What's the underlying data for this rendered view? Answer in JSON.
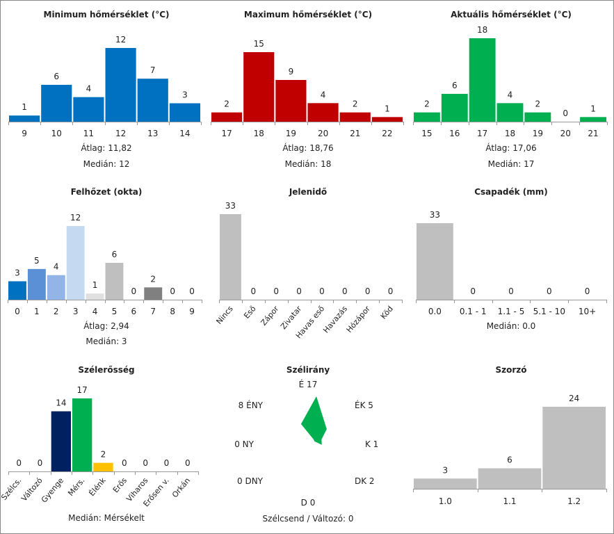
{
  "chart_data": [
    {
      "id": "min",
      "type": "bar",
      "title": "Minimum hőmérséklet (°C)",
      "categories": [
        "9",
        "10",
        "11",
        "12",
        "13",
        "14"
      ],
      "values": [
        1,
        6,
        4,
        12,
        7,
        3
      ],
      "colors": [
        "#0070c0"
      ],
      "stats": [
        [
          "Átlag:",
          "11,82"
        ],
        [
          "Medián:",
          "12"
        ]
      ]
    },
    {
      "id": "max",
      "type": "bar",
      "title": "Maximum hőmérséklet (°C)",
      "categories": [
        "17",
        "18",
        "19",
        "20",
        "21",
        "22"
      ],
      "values": [
        2,
        15,
        9,
        4,
        2,
        1
      ],
      "colors": [
        "#c00000"
      ],
      "stats": [
        [
          "Átlag:",
          "18,76"
        ],
        [
          "Medián:",
          "18"
        ]
      ]
    },
    {
      "id": "akt",
      "type": "bar",
      "title": "Aktuális hőmérséklet (°C)",
      "categories": [
        "15",
        "16",
        "17",
        "18",
        "19",
        "20",
        "21"
      ],
      "values": [
        2,
        6,
        18,
        4,
        2,
        0,
        1
      ],
      "colors": [
        "#00b050"
      ],
      "stats": [
        [
          "Átlag:",
          "17,06"
        ],
        [
          "Medián:",
          "17"
        ]
      ]
    },
    {
      "id": "felho",
      "type": "bar",
      "title": "Felhőzet (okta)",
      "categories": [
        "0",
        "1",
        "2",
        "3",
        "4",
        "5",
        "6",
        "7",
        "8",
        "9"
      ],
      "values": [
        3,
        5,
        4,
        12,
        1,
        6,
        0,
        2,
        0,
        0
      ],
      "colors": [
        "#0070c0",
        "#5b8fd6",
        "#92b4e6",
        "#c5d9f1",
        "#e0e0e0",
        "#bfbfbf",
        "#a6a6a6",
        "#808080",
        "#606060",
        "#404040"
      ],
      "stats": [
        [
          "Átlag:",
          "2,94"
        ],
        [
          "Medián:",
          "3"
        ]
      ]
    },
    {
      "id": "jelen",
      "type": "bar",
      "title": "Jelenidő",
      "categories": [
        "Nincs",
        "Eső",
        "Zápor",
        "Zivatar",
        "Havas eső",
        "Havazás",
        "Hózápor",
        "Köd"
      ],
      "values": [
        33,
        0,
        0,
        0,
        0,
        0,
        0,
        0
      ],
      "colors": [
        "#bfbfbf"
      ],
      "rotate": true,
      "stats": []
    },
    {
      "id": "csap",
      "type": "bar",
      "title": "Csapadék (mm)",
      "categories": [
        "0.0",
        "0.1 - 1",
        "1.1 - 5",
        "5.1 - 10",
        "10+"
      ],
      "values": [
        33,
        0,
        0,
        0,
        0
      ],
      "colors": [
        "#bfbfbf"
      ],
      "stats": [
        [
          "Medián:",
          "0.0"
        ]
      ]
    },
    {
      "id": "szel",
      "type": "bar",
      "title": "Szélerősség",
      "categories": [
        "Szélcs.",
        "Változó",
        "Gyenge",
        "Mérs.",
        "Élénk",
        "Erős",
        "Viharos",
        "Erősen v.",
        "Orkán"
      ],
      "values": [
        0,
        0,
        14,
        17,
        2,
        0,
        0,
        0,
        0
      ],
      "colors": [
        "#9e9e9e",
        "#9e9e9e",
        "#002060",
        "#00b050",
        "#ffc000",
        "#f79646",
        "#ff0000",
        "#c00000",
        "#7f0000"
      ],
      "rotate": true,
      "stats": [
        [
          "Medián:",
          "Mérsékelt"
        ]
      ]
    },
    {
      "id": "irany",
      "type": "wind_rose",
      "title": "Szélirány",
      "directions": [
        {
          "label": "É",
          "value": 17
        },
        {
          "label": "ÉK",
          "value": 5
        },
        {
          "label": "K",
          "value": 1
        },
        {
          "label": "DK",
          "value": 2
        },
        {
          "label": "D",
          "value": 0
        },
        {
          "label": "DNY",
          "value": 0
        },
        {
          "label": "NY",
          "value": 0
        },
        {
          "label": "ÉNY",
          "value": 8
        }
      ],
      "footer": "Szélcsend / Változó: 0",
      "color": "#00b050"
    },
    {
      "id": "szorzo",
      "type": "bar",
      "title": "Szorzó",
      "categories": [
        "1.0",
        "1.1",
        "1.2"
      ],
      "values": [
        3,
        6,
        24
      ],
      "colors": [
        "#bfbfbf"
      ],
      "stats": []
    }
  ]
}
